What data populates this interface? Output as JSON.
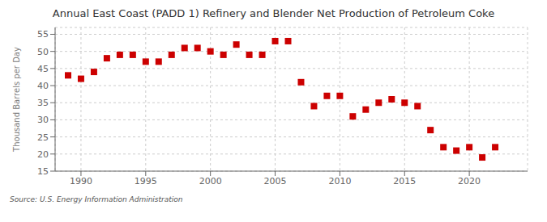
{
  "chart_data": {
    "type": "scatter",
    "title": "Annual East Coast (PADD 1) Refinery and Blender Net Production of Petroleum Coke",
    "ylabel": "Thousand Barrels per Day",
    "source": "Source: U.S. Energy Information Administration",
    "x": [
      1989,
      1990,
      1991,
      1992,
      1993,
      1994,
      1995,
      1996,
      1997,
      1998,
      1999,
      2000,
      2001,
      2002,
      2003,
      2004,
      2005,
      2006,
      2007,
      2008,
      2009,
      2010,
      2011,
      2012,
      2013,
      2014,
      2015,
      2016,
      2017,
      2018,
      2019,
      2020,
      2021,
      2022,
      2023
    ],
    "values": [
      43,
      42,
      44,
      48,
      49,
      49,
      47,
      47,
      49,
      51,
      51,
      50,
      49,
      52,
      49,
      49,
      53,
      53,
      41,
      34,
      37,
      37,
      31,
      33,
      35,
      36,
      35,
      34,
      27,
      22,
      21,
      22,
      19,
      22,
      null
    ],
    "color": "#cc0000",
    "marker": "square",
    "xlim": [
      1988.0,
      2024.5
    ],
    "xticks": [
      1990,
      1995,
      2000,
      2005,
      2010,
      2015,
      2020
    ],
    "ylim": [
      15,
      57
    ],
    "yticks": [
      15,
      20,
      25,
      30,
      35,
      40,
      45,
      50,
      55
    ],
    "grid": true
  }
}
